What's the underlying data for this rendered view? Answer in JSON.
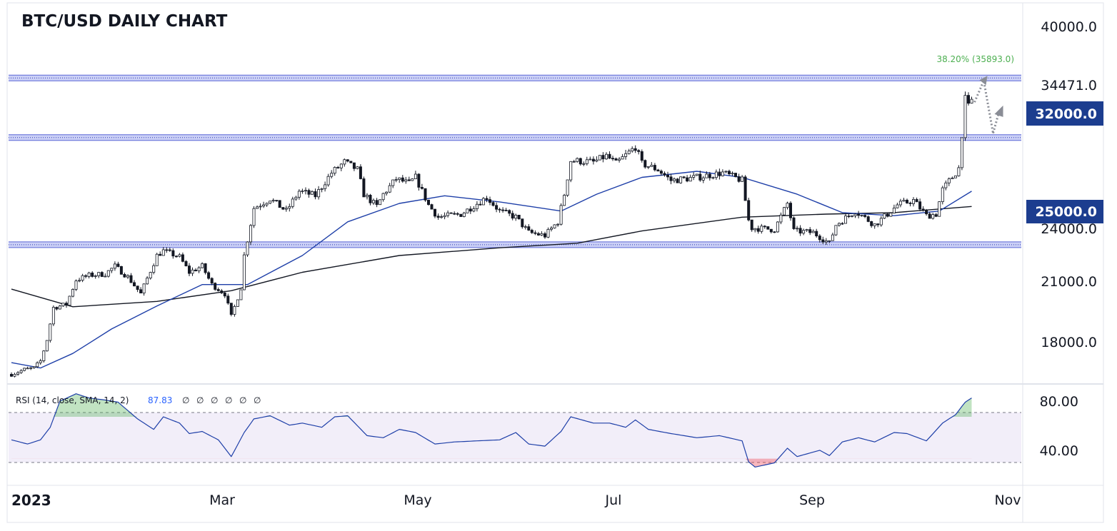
{
  "chart_data": {
    "type": "candlestick",
    "title": "BTC/USD DAILY CHART",
    "ylim": [
      16000,
      40800
    ],
    "y_ticks": [
      "40000.0",
      "34471.0",
      "24000.0",
      "21000.0",
      "18000.0"
    ],
    "price_box_labels": [
      "32000.0",
      "25000.0"
    ],
    "x_labels": [
      "2023",
      "Mar",
      "May",
      "Jul",
      "Sep",
      "Nov"
    ],
    "levels": [
      {
        "value": 35893,
        "label": "38.20% (35893.0)"
      },
      {
        "value": 32000,
        "label": "32000.0"
      },
      {
        "value": 25000,
        "label": "25000.0"
      }
    ],
    "anchors": [
      [
        "2023-01-01",
        16540
      ],
      [
        "2023-01-05",
        16850
      ],
      [
        "2023-01-08",
        16950
      ],
      [
        "2023-01-10",
        17400
      ],
      [
        "2023-01-12",
        18800
      ],
      [
        "2023-01-14",
        20900
      ],
      [
        "2023-01-18",
        21100
      ],
      [
        "2023-01-21",
        22700
      ],
      [
        "2023-01-25",
        23000
      ],
      [
        "2023-01-30",
        23100
      ],
      [
        "2023-02-02",
        23600
      ],
      [
        "2023-02-06",
        22900
      ],
      [
        "2023-02-10",
        21800
      ],
      [
        "2023-02-15",
        24300
      ],
      [
        "2023-02-17",
        24600
      ],
      [
        "2023-02-22",
        24200
      ],
      [
        "2023-02-25",
        23200
      ],
      [
        "2023-03-01",
        23600
      ],
      [
        "2023-03-04",
        22400
      ],
      [
        "2023-03-08",
        21800
      ],
      [
        "2023-03-10",
        20300
      ],
      [
        "2023-03-13",
        22200
      ],
      [
        "2023-03-14",
        24300
      ],
      [
        "2023-03-17",
        27400
      ],
      [
        "2023-03-22",
        28000
      ],
      [
        "2023-03-27",
        27200
      ],
      [
        "2023-03-31",
        28500
      ],
      [
        "2023-04-05",
        28200
      ],
      [
        "2023-04-10",
        29700
      ],
      [
        "2023-04-14",
        30400
      ],
      [
        "2023-04-18",
        29900
      ],
      [
        "2023-04-20",
        28300
      ],
      [
        "2023-04-24",
        27500
      ],
      [
        "2023-04-26",
        28300
      ],
      [
        "2023-04-30",
        29300
      ],
      [
        "2023-05-04",
        29000
      ],
      [
        "2023-05-06",
        29400
      ],
      [
        "2023-05-10",
        27600
      ],
      [
        "2023-05-13",
        26800
      ],
      [
        "2023-05-20",
        27000
      ],
      [
        "2023-05-28",
        28100
      ],
      [
        "2023-06-01",
        27200
      ],
      [
        "2023-06-06",
        26800
      ],
      [
        "2023-06-10",
        25800
      ],
      [
        "2023-06-15",
        25600
      ],
      [
        "2023-06-19",
        26500
      ],
      [
        "2023-06-21",
        28300
      ],
      [
        "2023-06-23",
        30500
      ],
      [
        "2023-06-30",
        30400
      ],
      [
        "2023-07-04",
        30800
      ],
      [
        "2023-07-07",
        30300
      ],
      [
        "2023-07-13",
        31400
      ],
      [
        "2023-07-15",
        30300
      ],
      [
        "2023-07-20",
        29900
      ],
      [
        "2023-07-24",
        29200
      ],
      [
        "2023-08-01",
        29400
      ],
      [
        "2023-08-09",
        29700
      ],
      [
        "2023-08-15",
        29200
      ],
      [
        "2023-08-17",
        26600
      ],
      [
        "2023-08-18",
        26100
      ],
      [
        "2023-08-25",
        26000
      ],
      [
        "2023-08-29",
        27700
      ],
      [
        "2023-08-31",
        25900
      ],
      [
        "2023-09-06",
        25800
      ],
      [
        "2023-09-11",
        25100
      ],
      [
        "2023-09-13",
        26300
      ],
      [
        "2023-09-19",
        27200
      ],
      [
        "2023-09-25",
        26300
      ],
      [
        "2023-09-29",
        27000
      ],
      [
        "2023-10-02",
        27600
      ],
      [
        "2023-10-07",
        27900
      ],
      [
        "2023-10-11",
        26900
      ],
      [
        "2023-10-14",
        27000
      ],
      [
        "2023-10-16",
        28600
      ],
      [
        "2023-10-20",
        29700
      ],
      [
        "2023-10-21",
        30000
      ],
      [
        "2023-10-23",
        34500
      ],
      [
        "2023-10-24",
        34000
      ],
      [
        "2023-10-25",
        34500
      ]
    ],
    "sma50": [
      [
        "2023-01-01",
        17300
      ],
      [
        "2023-01-10",
        16950
      ],
      [
        "2023-01-20",
        17900
      ],
      [
        "2023-02-01",
        19500
      ],
      [
        "2023-02-15",
        21000
      ],
      [
        "2023-03-01",
        22400
      ],
      [
        "2023-03-15",
        22400
      ],
      [
        "2023-04-01",
        24300
      ],
      [
        "2023-04-15",
        26500
      ],
      [
        "2023-05-01",
        27700
      ],
      [
        "2023-05-15",
        28200
      ],
      [
        "2023-06-01",
        27800
      ],
      [
        "2023-06-20",
        27200
      ],
      [
        "2023-07-01",
        28300
      ],
      [
        "2023-07-15",
        29400
      ],
      [
        "2023-08-01",
        29800
      ],
      [
        "2023-08-15",
        29400
      ],
      [
        "2023-09-01",
        28300
      ],
      [
        "2023-09-15",
        27100
      ],
      [
        "2023-10-01",
        26900
      ],
      [
        "2023-10-15",
        27200
      ],
      [
        "2023-10-25",
        28500
      ]
    ],
    "sma200": [
      [
        "2023-01-01",
        22100
      ],
      [
        "2023-01-20",
        20950
      ],
      [
        "2023-02-15",
        21300
      ],
      [
        "2023-03-10",
        22000
      ],
      [
        "2023-04-01",
        23200
      ],
      [
        "2023-05-01",
        24300
      ],
      [
        "2023-06-01",
        24800
      ],
      [
        "2023-06-25",
        25100
      ],
      [
        "2023-07-15",
        25900
      ],
      [
        "2023-08-15",
        26800
      ],
      [
        "2023-09-10",
        27000
      ],
      [
        "2023-10-01",
        27100
      ],
      [
        "2023-10-25",
        27500
      ]
    ],
    "rsi": {
      "legend": "RSI (14, close, SMA, 14, 2)",
      "value_label": "87.83",
      "extras": [
        "∅",
        "∅",
        "∅",
        "∅",
        "∅",
        "∅"
      ],
      "ylim": [
        10,
        100
      ],
      "y_ticks": [
        "80.00",
        "40.00"
      ],
      "bands": [
        30,
        70
      ],
      "points": [
        [
          "2023-01-01",
          48
        ],
        [
          "2023-01-06",
          44
        ],
        [
          "2023-01-10",
          48
        ],
        [
          "2023-01-13",
          60
        ],
        [
          "2023-01-16",
          85
        ],
        [
          "2023-01-21",
          92
        ],
        [
          "2023-01-25",
          88
        ],
        [
          "2023-01-30",
          86
        ],
        [
          "2023-02-03",
          84
        ],
        [
          "2023-02-09",
          68
        ],
        [
          "2023-02-14",
          58
        ],
        [
          "2023-02-17",
          70
        ],
        [
          "2023-02-22",
          64
        ],
        [
          "2023-02-25",
          54
        ],
        [
          "2023-03-01",
          56
        ],
        [
          "2023-03-06",
          48
        ],
        [
          "2023-03-10",
          32
        ],
        [
          "2023-03-14",
          55
        ],
        [
          "2023-03-17",
          68
        ],
        [
          "2023-03-22",
          71
        ],
        [
          "2023-03-28",
          62
        ],
        [
          "2023-04-01",
          64
        ],
        [
          "2023-04-07",
          60
        ],
        [
          "2023-04-11",
          70
        ],
        [
          "2023-04-15",
          71
        ],
        [
          "2023-04-21",
          52
        ],
        [
          "2023-04-26",
          50
        ],
        [
          "2023-05-01",
          58
        ],
        [
          "2023-05-06",
          55
        ],
        [
          "2023-05-12",
          44
        ],
        [
          "2023-05-18",
          46
        ],
        [
          "2023-05-25",
          47
        ],
        [
          "2023-06-01",
          48
        ],
        [
          "2023-06-06",
          55
        ],
        [
          "2023-06-10",
          44
        ],
        [
          "2023-06-15",
          42
        ],
        [
          "2023-06-20",
          56
        ],
        [
          "2023-06-23",
          70
        ],
        [
          "2023-06-30",
          64
        ],
        [
          "2023-07-05",
          64
        ],
        [
          "2023-07-10",
          60
        ],
        [
          "2023-07-13",
          67
        ],
        [
          "2023-07-17",
          58
        ],
        [
          "2023-07-24",
          54
        ],
        [
          "2023-08-01",
          50
        ],
        [
          "2023-08-08",
          52
        ],
        [
          "2023-08-15",
          47
        ],
        [
          "2023-08-17",
          27
        ],
        [
          "2023-08-19",
          22
        ],
        [
          "2023-08-25",
          26
        ],
        [
          "2023-08-29",
          40
        ],
        [
          "2023-09-01",
          32
        ],
        [
          "2023-09-08",
          38
        ],
        [
          "2023-09-11",
          33
        ],
        [
          "2023-09-15",
          46
        ],
        [
          "2023-09-20",
          50
        ],
        [
          "2023-09-25",
          46
        ],
        [
          "2023-10-01",
          55
        ],
        [
          "2023-10-05",
          54
        ],
        [
          "2023-10-11",
          47
        ],
        [
          "2023-10-16",
          64
        ],
        [
          "2023-10-20",
          72
        ],
        [
          "2023-10-23",
          84
        ],
        [
          "2023-10-25",
          88
        ]
      ]
    }
  }
}
